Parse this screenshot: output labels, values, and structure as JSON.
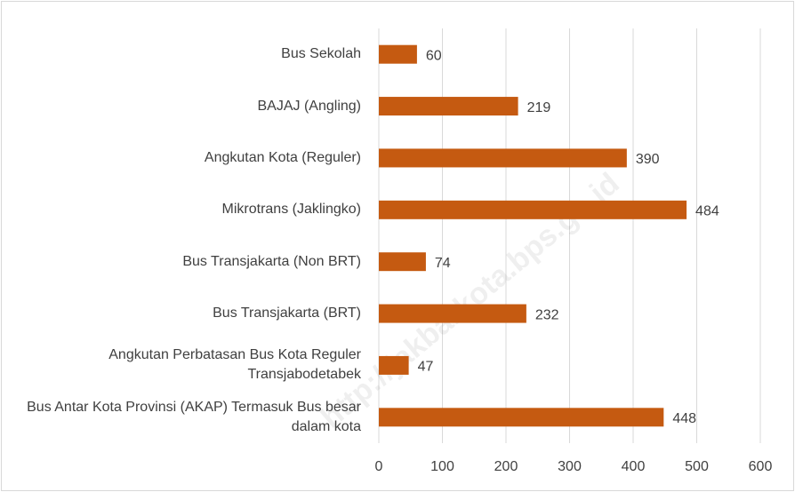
{
  "chart_data": {
    "type": "bar",
    "orientation": "horizontal",
    "categories": [
      "Bus Sekolah",
      "BAJAJ (Angling)",
      "Angkutan Kota (Reguler)",
      "Mikrotrans (Jaklingko)",
      "Bus Transjakarta (Non BRT)",
      "Bus Transjakarta (BRT)",
      "Angkutan Perbatasan Bus Kota Reguler Transjabodetabek",
      "Bus Antar Kota Provinsi (AKAP) Termasuk Bus besar dalam kota"
    ],
    "values": [
      60,
      219,
      390,
      484,
      74,
      232,
      47,
      448
    ],
    "color": "#c55a11",
    "xlim": [
      0,
      600
    ],
    "xticks": [
      0,
      100,
      200,
      300,
      400,
      500,
      600
    ],
    "grid": true,
    "watermark": "http://jakbarkota.bps.go.id"
  }
}
